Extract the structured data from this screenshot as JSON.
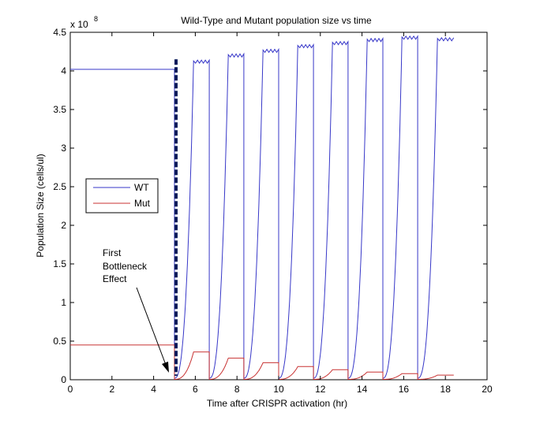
{
  "chart_data": {
    "type": "line",
    "title": "Wild-Type and Mutant population size vs time",
    "xlabel": "Time after CRISPR activation (hr)",
    "ylabel": "Population Size (cells/ul)",
    "y_exponent_label": "x 10",
    "y_exponent_power": "8",
    "xlim": [
      0,
      20
    ],
    "ylim": [
      0,
      4.5
    ],
    "x_ticks": [
      0,
      2,
      4,
      6,
      8,
      10,
      12,
      14,
      16,
      18,
      20
    ],
    "x_tick_labels": [
      "0",
      "2",
      "4",
      "6",
      "8",
      "10",
      "12",
      "14",
      "16",
      "18",
      "20"
    ],
    "y_ticks": [
      0,
      0.5,
      1,
      1.5,
      2,
      2.5,
      3,
      3.5,
      4,
      4.5
    ],
    "y_tick_labels": [
      "0",
      "0.5",
      "1",
      "1.5",
      "2",
      "2.5",
      "3",
      "3.5",
      "4",
      "4.5"
    ],
    "legend": {
      "position": "center-left",
      "entries": [
        "WT",
        "Mut"
      ]
    },
    "bottleneck_marker": {
      "x": 5.0,
      "ymin": 0.05,
      "ymax": 4.15
    },
    "annotation": {
      "lines": [
        "First",
        "Bottleneck",
        "Effect"
      ],
      "points_to": [
        4.95,
        0.1
      ]
    },
    "series": [
      {
        "name": "WT",
        "color": "#3737c8",
        "initial": 4.02,
        "cycles": [
          {
            "start": 5.0,
            "end": 6.67,
            "plateau": 4.13
          },
          {
            "start": 6.67,
            "end": 8.33,
            "plateau": 4.21
          },
          {
            "start": 8.33,
            "end": 10.0,
            "plateau": 4.27
          },
          {
            "start": 10.0,
            "end": 11.67,
            "plateau": 4.33
          },
          {
            "start": 11.67,
            "end": 13.33,
            "plateau": 4.37
          },
          {
            "start": 13.33,
            "end": 15.0,
            "plateau": 4.41
          },
          {
            "start": 15.0,
            "end": 16.67,
            "plateau": 4.44
          },
          {
            "start": 16.67,
            "end": 18.4,
            "plateau": 4.42
          }
        ]
      },
      {
        "name": "Mut",
        "color": "#c83232",
        "initial": 0.45,
        "cycles": [
          {
            "start": 5.0,
            "end": 6.67,
            "plateau": 0.36
          },
          {
            "start": 6.67,
            "end": 8.33,
            "plateau": 0.28
          },
          {
            "start": 8.33,
            "end": 10.0,
            "plateau": 0.22
          },
          {
            "start": 10.0,
            "end": 11.67,
            "plateau": 0.17
          },
          {
            "start": 11.67,
            "end": 13.33,
            "plateau": 0.13
          },
          {
            "start": 13.33,
            "end": 15.0,
            "plateau": 0.1
          },
          {
            "start": 15.0,
            "end": 16.67,
            "plateau": 0.08
          },
          {
            "start": 16.67,
            "end": 18.4,
            "plateau": 0.06
          }
        ]
      }
    ]
  }
}
